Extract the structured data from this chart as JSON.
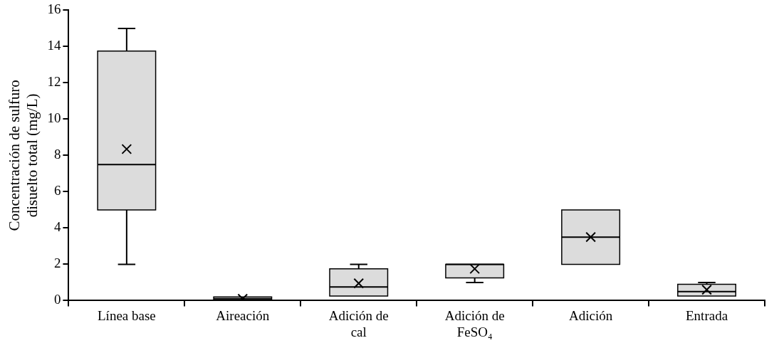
{
  "chart_data": {
    "type": "box",
    "ylabel": "Concentración de sulfuro disuelto total (mg/L)",
    "categories": [
      "Línea base",
      "Aireación",
      "Adición de cal",
      "Adición de FeSO₄",
      "Adición",
      "Entrada"
    ],
    "boxes": [
      {
        "low": 2,
        "q1": 5,
        "median": 7.5,
        "q3": 13.75,
        "high": 15,
        "mean": 8.35
      },
      {
        "low": 0.05,
        "q1": 0.05,
        "median": 0.1,
        "q3": 0.2,
        "high": 0.2,
        "mean": 0.1
      },
      {
        "low": 0.25,
        "q1": 0.25,
        "median": 0.75,
        "q3": 1.75,
        "high": 2,
        "mean": 0.95
      },
      {
        "low": 1,
        "q1": 1.25,
        "median": 2,
        "q3": 2,
        "high": 2,
        "mean": 1.75
      },
      {
        "low": 2,
        "q1": 2,
        "median": 3.5,
        "q3": 5,
        "high": 5,
        "mean": 3.5
      },
      {
        "low": 0.25,
        "q1": 0.25,
        "median": 0.5,
        "q3": 0.9,
        "high": 1,
        "mean": 0.6
      }
    ],
    "color": "#dcdcdc",
    "ylim": [
      0,
      16
    ],
    "yticks": [
      0,
      2,
      4,
      6,
      8,
      10,
      12,
      14,
      16
    ],
    "grid": false,
    "legend": false
  }
}
